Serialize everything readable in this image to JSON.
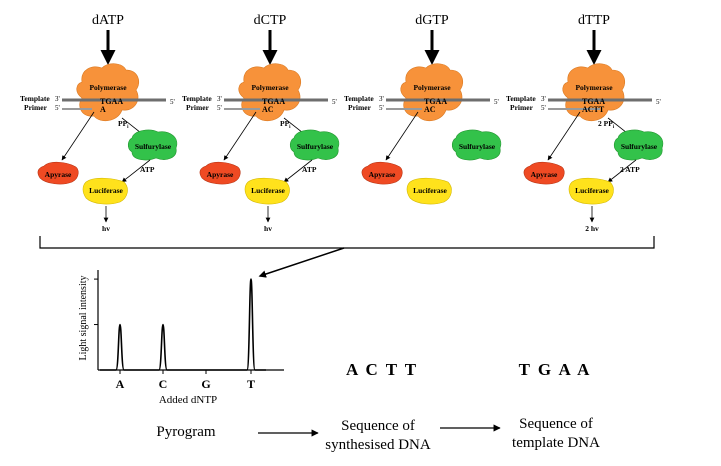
{
  "colors": {
    "polymerase": "#f7923a",
    "sulfurylase": "#33c24a",
    "apyrase": "#ef4a23",
    "luciferase": "#ffe21c",
    "strand": "#6e6e6e"
  },
  "panels": [
    {
      "dntp": "dATP",
      "polymerase": "Polymerase",
      "template_label": "Template",
      "primer_label": "Primer",
      "template_seq": "TGAA",
      "primer_seq": "A",
      "five_prime": "5'",
      "three_prime": "3'",
      "primer_five": "5'",
      "pp": "PP",
      "pp_sub": "i",
      "sulfurylase": "Sulfurylase",
      "atp": "ATP",
      "apyrase": "Apyrase",
      "luciferase": "Luciferase",
      "light": "hv",
      "reaction": true
    },
    {
      "dntp": "dCTP",
      "polymerase": "Polymerase",
      "template_label": "Template",
      "primer_label": "Primer",
      "template_seq": "TGAA",
      "primer_seq": "AC",
      "five_prime": "5'",
      "three_prime": "3'",
      "primer_five": "5'",
      "pp": "PP",
      "pp_sub": "i",
      "sulfurylase": "Sulfurylase",
      "atp": "ATP",
      "apyrase": "Apyrase",
      "luciferase": "Luciferase",
      "light": "hv",
      "reaction": true
    },
    {
      "dntp": "dGTP",
      "polymerase": "Polymerase",
      "template_label": "Template",
      "primer_label": "Primer",
      "template_seq": "TGAA",
      "primer_seq": "AC",
      "five_prime": "5'",
      "three_prime": "3'",
      "primer_five": "5'",
      "pp": "",
      "pp_sub": "",
      "sulfurylase": "Sulfurylase",
      "atp": "",
      "apyrase": "Apyrase",
      "luciferase": "Luciferase",
      "light": "",
      "reaction": false
    },
    {
      "dntp": "dTTP",
      "polymerase": "Polymerase",
      "template_label": "Template",
      "primer_label": "Primer",
      "template_seq": "TGAA",
      "primer_seq": "ACTT",
      "five_prime": "5'",
      "three_prime": "3'",
      "primer_five": "5'",
      "pp": "2 PP",
      "pp_sub": "i",
      "sulfurylase": "Sulfurylase",
      "atp": "2 ATP",
      "apyrase": "Apyrase",
      "luciferase": "Luciferase",
      "light": "2 hv",
      "reaction": true
    }
  ],
  "pyrogram": {
    "ylabel": "Light signal intensity",
    "xlabel": "Added dNTP",
    "caption": "Pyrogram"
  },
  "chart_data": {
    "type": "line",
    "categories": [
      "A",
      "C",
      "G",
      "T"
    ],
    "values": [
      1,
      1,
      0,
      2
    ],
    "xlabel": "Added dNTP",
    "ylabel": "Light signal intensity",
    "ylim": [
      0,
      2.2
    ]
  },
  "sequences": {
    "synthesised": "A C T T",
    "template": "T G A A",
    "synth_caption_line1": "Sequence of",
    "synth_caption_line2": "synthesised DNA",
    "template_caption_line1": "Sequence of",
    "template_caption_line2": "template DNA"
  }
}
